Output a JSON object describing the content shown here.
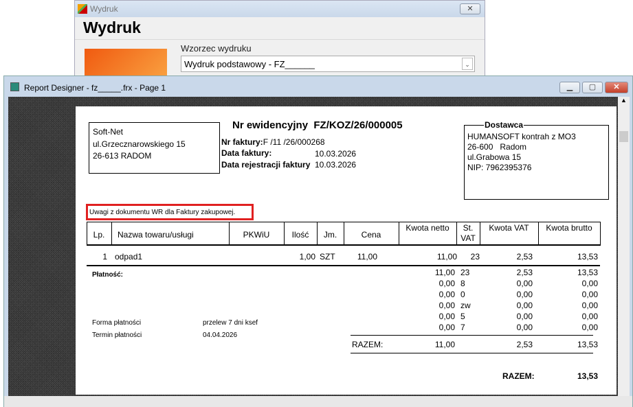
{
  "print_dialog": {
    "title": "Wydruk",
    "heading": "Wydruk",
    "template_group_label": "Wzorzec wydruku",
    "template_value": "Wydruk podstawowy - FZ______"
  },
  "designer": {
    "title": "Report Designer - fz_____.frx - Page 1"
  },
  "report": {
    "buyer": [
      "Soft-Net",
      "ul.Grzecznarowskiego 15",
      "26-613 RADOM"
    ],
    "doc_title_label": "Nr ewidencyjny",
    "doc_number": "FZ/KOZ/26/000005",
    "invoice_no_label": "Nr faktury:",
    "invoice_no": "F /11 /26/000268",
    "invoice_date_label": "Data faktury:",
    "invoice_date": "10.03.2026",
    "reg_date_label": "Data rejestracji faktury",
    "reg_date": "10.03.2026",
    "supplier_label": "Dostawca",
    "supplier": [
      "HUMANSOFT kontrah z MO3",
      "26-600   Radom",
      "ul.Grabowa 15",
      "NIP: 7962395376"
    ],
    "remarks": "Uwagi z dokumentu WR dla Faktury zakupowej.",
    "remarks_highlight_color": "#e02020",
    "columns": [
      "Lp.",
      "Nazwa towaru/usługi",
      "PKWiU",
      "Ilość",
      "Jm.",
      "Cena",
      "Kwota netto",
      "St. VAT",
      "Kwota VAT",
      "Kwota brutto"
    ],
    "items": [
      {
        "lp": "1",
        "name": "odpad1",
        "pkwiu": "",
        "qty": "1,00",
        "unit": "SZT",
        "price": "11,00",
        "net": "11,00",
        "rate": "23",
        "vat": "2,53",
        "gross": "13,53"
      }
    ],
    "payment_label": "Płatność:",
    "vat_summary": [
      {
        "net": "11,00",
        "rate": "23",
        "vat": "2,53",
        "gross": "13,53"
      },
      {
        "net": "0,00",
        "rate": "8",
        "vat": "0,00",
        "gross": "0,00"
      },
      {
        "net": "0,00",
        "rate": "0",
        "vat": "0,00",
        "gross": "0,00"
      },
      {
        "net": "0,00",
        "rate": "zw",
        "vat": "0,00",
        "gross": "0,00"
      },
      {
        "net": "0,00",
        "rate": "5",
        "vat": "0,00",
        "gross": "0,00"
      },
      {
        "net": "0,00",
        "rate": "7",
        "vat": "0,00",
        "gross": "0,00"
      }
    ],
    "payment_form_label": "Forma płatności",
    "payment_form": "przelew 7 dni ksef",
    "payment_due_label": "Termin płatności",
    "payment_due": "04.04.2026",
    "total_label": "RAZEM:",
    "total_net": "11,00",
    "total_vat": "2,53",
    "total_gross": "13,53",
    "grand_total_label": "RAZEM:",
    "grand_total": "13,53"
  }
}
